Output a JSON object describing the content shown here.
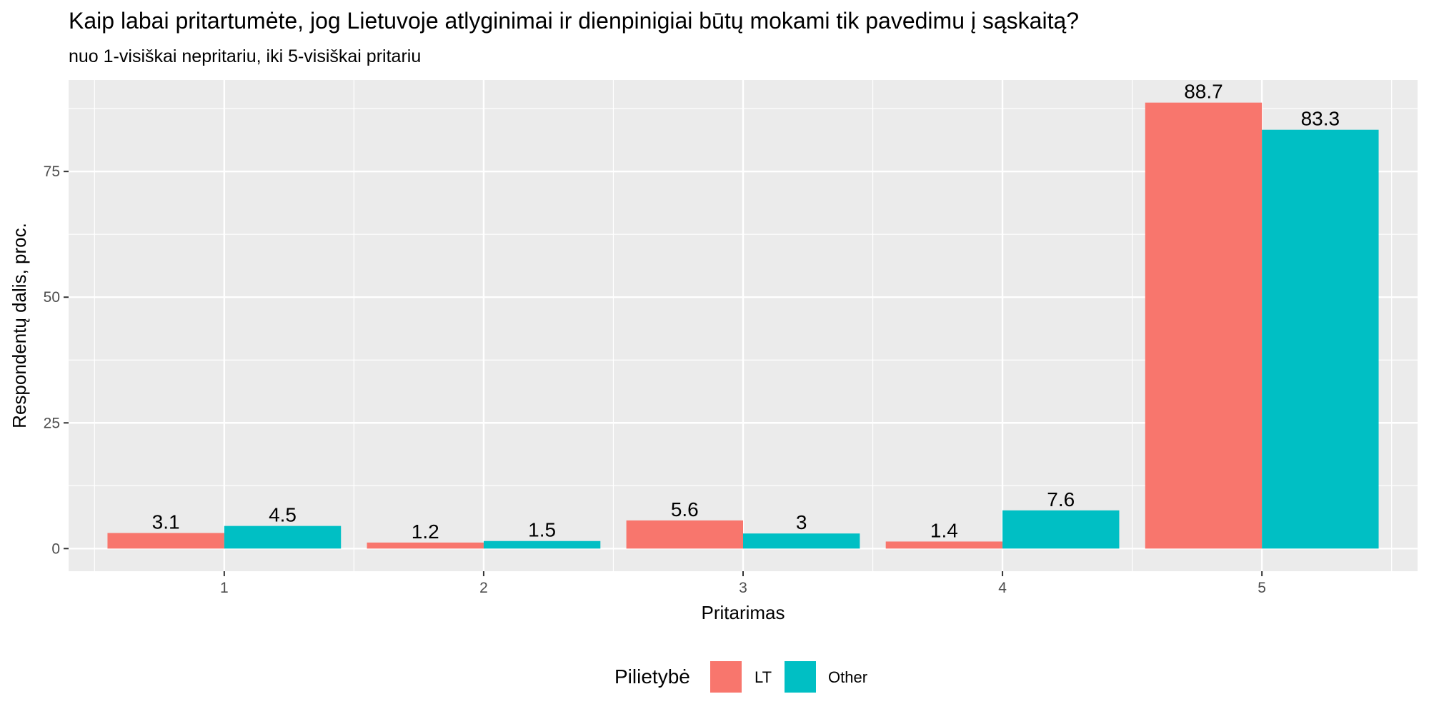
{
  "chart_data": {
    "type": "bar",
    "title": "Kaip labai pritartumėte, jog Lietuvoje atlyginimai ir dienpinigiai būtų mokami tik pavedimu į sąskaitą?",
    "subtitle": "nuo 1-visiškai nepritariu, iki 5-visiškai pritariu",
    "xlabel": "Pritarimas",
    "ylabel": "Respondentų dalis, proc.",
    "categories": [
      "1",
      "2",
      "3",
      "4",
      "5"
    ],
    "yticks": [
      0,
      25,
      50,
      75
    ],
    "ylim": [
      -4.5,
      93.2
    ],
    "grid": true,
    "legend": {
      "title": "Pilietybė",
      "position": "bottom"
    },
    "series": [
      {
        "name": "LT",
        "color": "#F8766D",
        "values": [
          3.1,
          1.2,
          5.6,
          1.4,
          88.7
        ],
        "labels": [
          "3.1",
          "1.2",
          "5.6",
          "1.4",
          "88.7"
        ]
      },
      {
        "name": "Other",
        "color": "#00BFC4",
        "values": [
          4.5,
          1.5,
          3,
          7.6,
          83.3
        ],
        "labels": [
          "4.5",
          "1.5",
          "3",
          "7.6",
          "83.3"
        ]
      }
    ],
    "panel_background": "#EBEBEB",
    "grid_color": "#FFFFFF"
  }
}
